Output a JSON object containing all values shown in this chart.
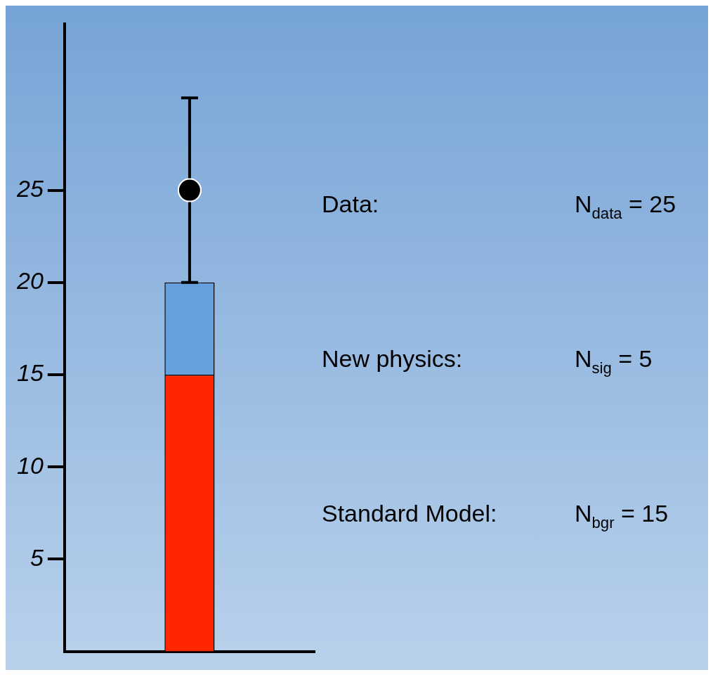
{
  "chart_data": {
    "type": "bar",
    "categories": [
      null
    ],
    "stacked": true,
    "series": [
      {
        "color": "#ff2600",
        "values": [
          15
        ]
      },
      {
        "color": "#66a0dc",
        "values": [
          5
        ]
      },
      {
        "type": "scatter",
        "color": "#000000",
        "values": [
          25
        ],
        "errors": [
          5
        ],
        "marker": "circle"
      }
    ],
    "ylim": [
      0,
      34
    ],
    "yticks": [
      5,
      10,
      15,
      20,
      25
    ],
    "grid": false,
    "legend": false,
    "annotations": [
      "Data:",
      "N$_{data}$ = 25",
      "New physics:",
      "N$_{sig}$ = 5",
      "Standard Model:",
      "N$_{bgr}$ = 15"
    ]
  }
}
